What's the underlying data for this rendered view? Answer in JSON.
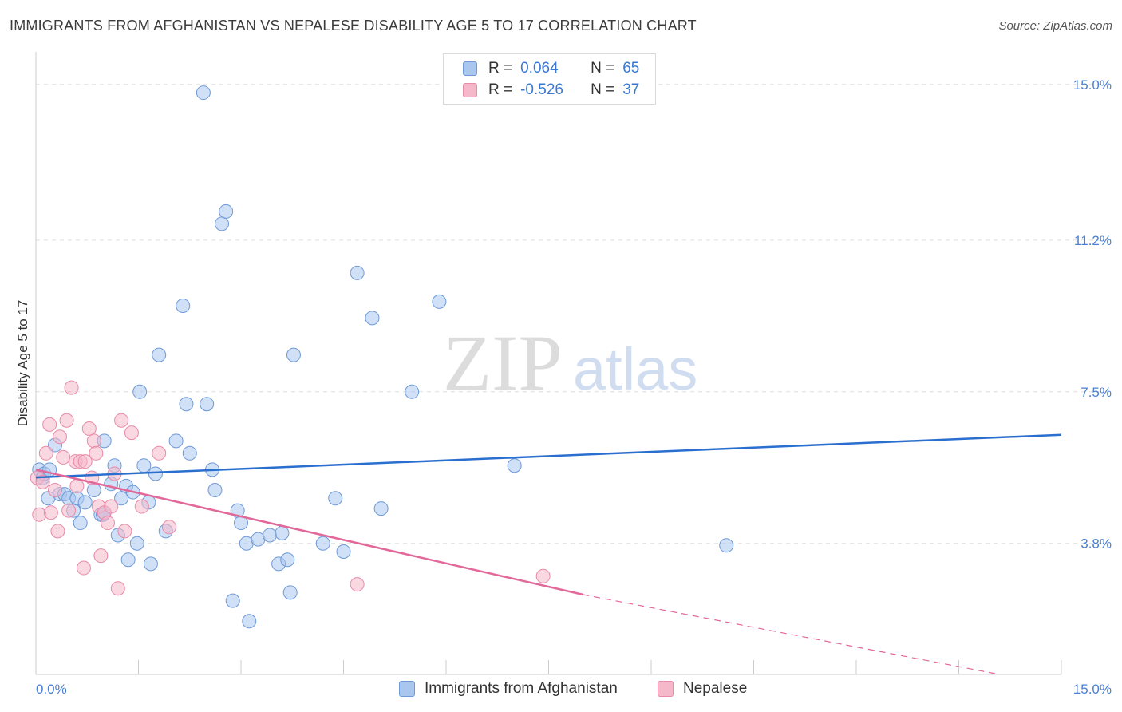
{
  "header": {
    "title": "IMMIGRANTS FROM AFGHANISTAN VS NEPALESE DISABILITY AGE 5 TO 17 CORRELATION CHART",
    "source": "Source: ZipAtlas.com"
  },
  "watermark": {
    "zip": "ZIP",
    "atlas": "atlas"
  },
  "legend": {
    "rows": [
      {
        "r_label": "R =",
        "r_value": "0.064",
        "n_label": "N =",
        "n_value": "65",
        "color": "#a9c6ef"
      },
      {
        "r_label": "R =",
        "r_value": "-0.526",
        "n_label": "N =",
        "n_value": "37",
        "color": "#f5b8cb"
      }
    ]
  },
  "bottom_legend": {
    "items": [
      {
        "label": "Immigrants from Afghanistan",
        "color": "#a9c6ef"
      },
      {
        "label": "Nepalese",
        "color": "#f5b8cb"
      }
    ]
  },
  "colors": {
    "blue_fill": "#a9c6ef",
    "blue_stroke": "#6f9ad8",
    "blue_line": "#2a6fcf",
    "pink_fill": "#f5b8cb",
    "pink_stroke": "#e88aa8",
    "pink_line": "#e3689a",
    "tick_text": "#4a7fd4",
    "grid": "#dddddd"
  },
  "chart_data": {
    "type": "scatter",
    "title": "IMMIGRANTS FROM AFGHANISTAN VS NEPALESE DISABILITY AGE 5 TO 17 CORRELATION CHART",
    "xlabel": "",
    "ylabel": "Disability Age 5 to 17",
    "xlim": [
      0,
      15
    ],
    "ylim": [
      0.6,
      15.6
    ],
    "x_tick_labels": [
      {
        "value": 0,
        "label": "0.0%"
      },
      {
        "value": 15,
        "label": "15.0%"
      }
    ],
    "y_tick_labels": [
      {
        "value": 3.8,
        "label": "3.8%"
      },
      {
        "value": 7.5,
        "label": "7.5%"
      },
      {
        "value": 11.2,
        "label": "11.2%"
      },
      {
        "value": 15.0,
        "label": "15.0%"
      }
    ],
    "grid": true,
    "legend_position": "top-center",
    "series": [
      {
        "name": "Immigrants from Afghanistan",
        "color": "#a9c6ef",
        "points": [
          [
            0.05,
            5.6
          ],
          [
            0.1,
            5.4
          ],
          [
            0.12,
            5.5
          ],
          [
            0.18,
            4.9
          ],
          [
            0.2,
            5.6
          ],
          [
            0.28,
            6.2
          ],
          [
            0.35,
            5.0
          ],
          [
            0.42,
            5.0
          ],
          [
            0.48,
            4.9
          ],
          [
            0.55,
            4.6
          ],
          [
            0.6,
            4.9
          ],
          [
            0.65,
            4.3
          ],
          [
            0.72,
            4.8
          ],
          [
            0.85,
            5.1
          ],
          [
            0.95,
            4.5
          ],
          [
            0.98,
            4.5
          ],
          [
            1.0,
            6.3
          ],
          [
            1.1,
            5.25
          ],
          [
            1.15,
            5.7
          ],
          [
            1.2,
            4.0
          ],
          [
            1.25,
            4.9
          ],
          [
            1.32,
            5.2
          ],
          [
            1.35,
            3.4
          ],
          [
            1.42,
            5.05
          ],
          [
            1.48,
            3.8
          ],
          [
            1.52,
            7.5
          ],
          [
            1.58,
            5.7
          ],
          [
            1.65,
            4.8
          ],
          [
            1.68,
            3.3
          ],
          [
            1.75,
            5.5
          ],
          [
            1.8,
            8.4
          ],
          [
            1.9,
            4.1
          ],
          [
            2.05,
            6.3
          ],
          [
            2.15,
            9.6
          ],
          [
            2.2,
            7.2
          ],
          [
            2.25,
            6.0
          ],
          [
            2.45,
            14.8
          ],
          [
            2.5,
            7.2
          ],
          [
            2.58,
            5.6
          ],
          [
            2.62,
            5.1
          ],
          [
            2.72,
            11.6
          ],
          [
            2.78,
            11.9
          ],
          [
            2.88,
            2.4
          ],
          [
            2.95,
            4.6
          ],
          [
            3.0,
            4.3
          ],
          [
            3.08,
            3.8
          ],
          [
            3.12,
            1.9
          ],
          [
            3.25,
            3.9
          ],
          [
            3.42,
            4.0
          ],
          [
            3.55,
            3.3
          ],
          [
            3.6,
            4.05
          ],
          [
            3.68,
            3.4
          ],
          [
            3.72,
            2.6
          ],
          [
            3.77,
            8.4
          ],
          [
            4.2,
            3.8
          ],
          [
            4.38,
            4.9
          ],
          [
            4.5,
            3.6
          ],
          [
            4.7,
            10.4
          ],
          [
            4.92,
            9.3
          ],
          [
            5.05,
            4.65
          ],
          [
            5.5,
            7.5
          ],
          [
            5.9,
            9.7
          ],
          [
            7.0,
            5.7
          ],
          [
            10.1,
            3.75
          ],
          [
            1.0,
            4.55
          ]
        ]
      },
      {
        "name": "Nepalese",
        "color": "#f5b8cb",
        "points": [
          [
            0.02,
            5.4
          ],
          [
            0.05,
            4.5
          ],
          [
            0.1,
            5.3
          ],
          [
            0.15,
            6.0
          ],
          [
            0.2,
            6.7
          ],
          [
            0.22,
            4.55
          ],
          [
            0.28,
            5.1
          ],
          [
            0.32,
            4.1
          ],
          [
            0.35,
            6.4
          ],
          [
            0.4,
            5.9
          ],
          [
            0.45,
            6.8
          ],
          [
            0.48,
            4.6
          ],
          [
            0.52,
            7.6
          ],
          [
            0.58,
            5.8
          ],
          [
            0.6,
            5.2
          ],
          [
            0.65,
            5.8
          ],
          [
            0.7,
            3.2
          ],
          [
            0.72,
            5.8
          ],
          [
            0.78,
            6.6
          ],
          [
            0.82,
            5.4
          ],
          [
            0.85,
            6.3
          ],
          [
            0.88,
            6.0
          ],
          [
            0.92,
            4.7
          ],
          [
            0.95,
            3.5
          ],
          [
            1.0,
            4.55
          ],
          [
            1.05,
            4.3
          ],
          [
            1.1,
            4.7
          ],
          [
            1.15,
            5.5
          ],
          [
            1.2,
            2.7
          ],
          [
            1.25,
            6.8
          ],
          [
            1.3,
            4.1
          ],
          [
            1.4,
            6.5
          ],
          [
            1.55,
            4.7
          ],
          [
            1.8,
            6.0
          ],
          [
            1.95,
            4.2
          ],
          [
            4.7,
            2.8
          ],
          [
            7.42,
            3.0
          ]
        ]
      }
    ],
    "trend_lines": [
      {
        "series": "Immigrants from Afghanistan",
        "x": [
          0,
          15
        ],
        "y": [
          5.41,
          6.45
        ],
        "style": "solid"
      },
      {
        "series": "Nepalese",
        "x": [
          0,
          8.0
        ],
        "y": [
          5.6,
          2.55
        ],
        "style": "solid"
      },
      {
        "series": "Nepalese",
        "x": [
          8.0,
          14.1
        ],
        "y": [
          2.55,
          0.6
        ],
        "style": "dashed"
      }
    ]
  }
}
